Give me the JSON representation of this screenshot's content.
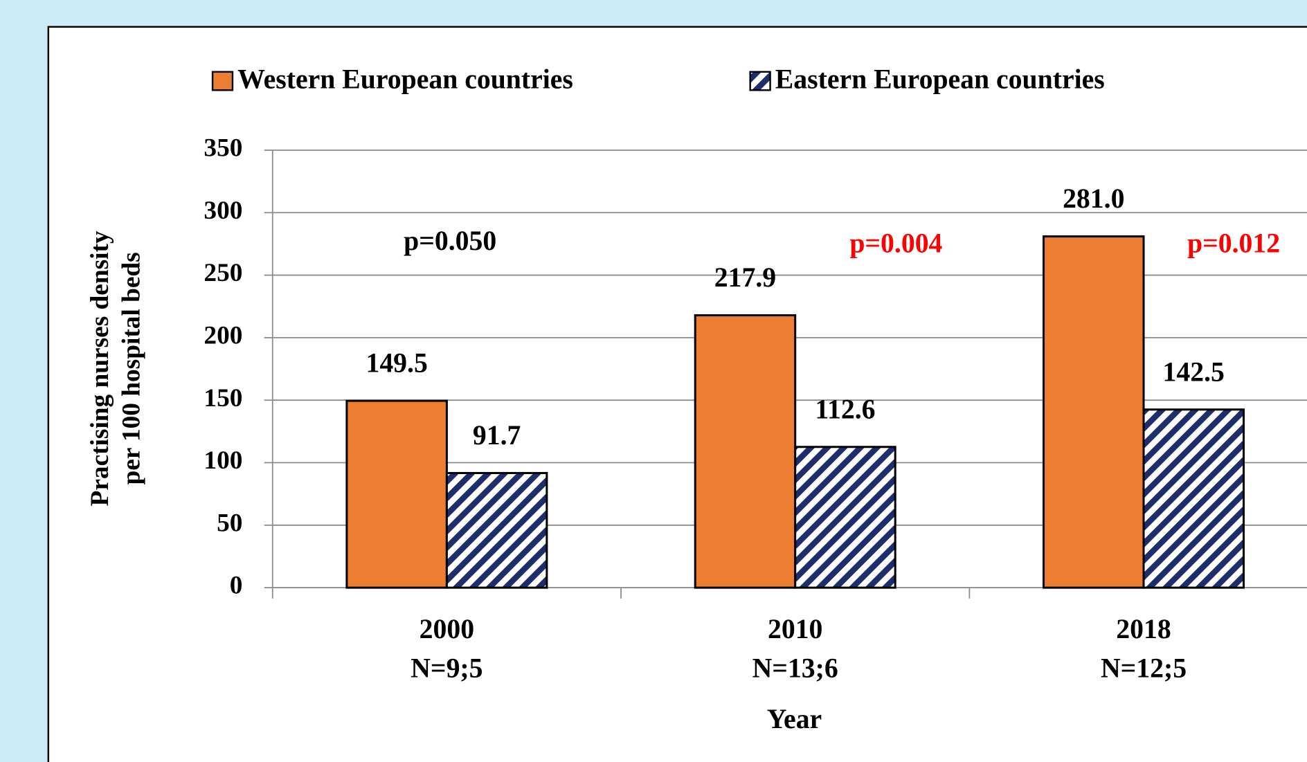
{
  "chart_data": {
    "type": "bar",
    "ylabel": [
      "Practising nurses density",
      "per 100 hospital beds"
    ],
    "xlabel": "Year",
    "categories": [
      "2000",
      "2010",
      "2018"
    ],
    "category_notes": [
      "N=9;5",
      "N=13;6",
      "N=12;5"
    ],
    "series": [
      {
        "name": "Western European countries",
        "color": "#ed7d31",
        "values": [
          149.5,
          217.9,
          281
        ],
        "value_labels": [
          "149.5",
          "217.9",
          "281.0"
        ]
      },
      {
        "name": "Eastern European countries",
        "color": "#1f2d6b",
        "pattern": "hatch",
        "values": [
          91.7,
          112.6,
          142.5
        ]
      }
    ],
    "annotations": [
      {
        "text": "p=0.050",
        "color": "#000000"
      },
      {
        "text": "p=0.004",
        "color": "#ff0000"
      },
      {
        "text": "p=0.012",
        "color": "#ff0000"
      }
    ],
    "ylim": [
      0,
      350
    ],
    "yticks": [
      0,
      50,
      100,
      150,
      200,
      250,
      300,
      350
    ],
    "grid": true,
    "legend": "top"
  }
}
